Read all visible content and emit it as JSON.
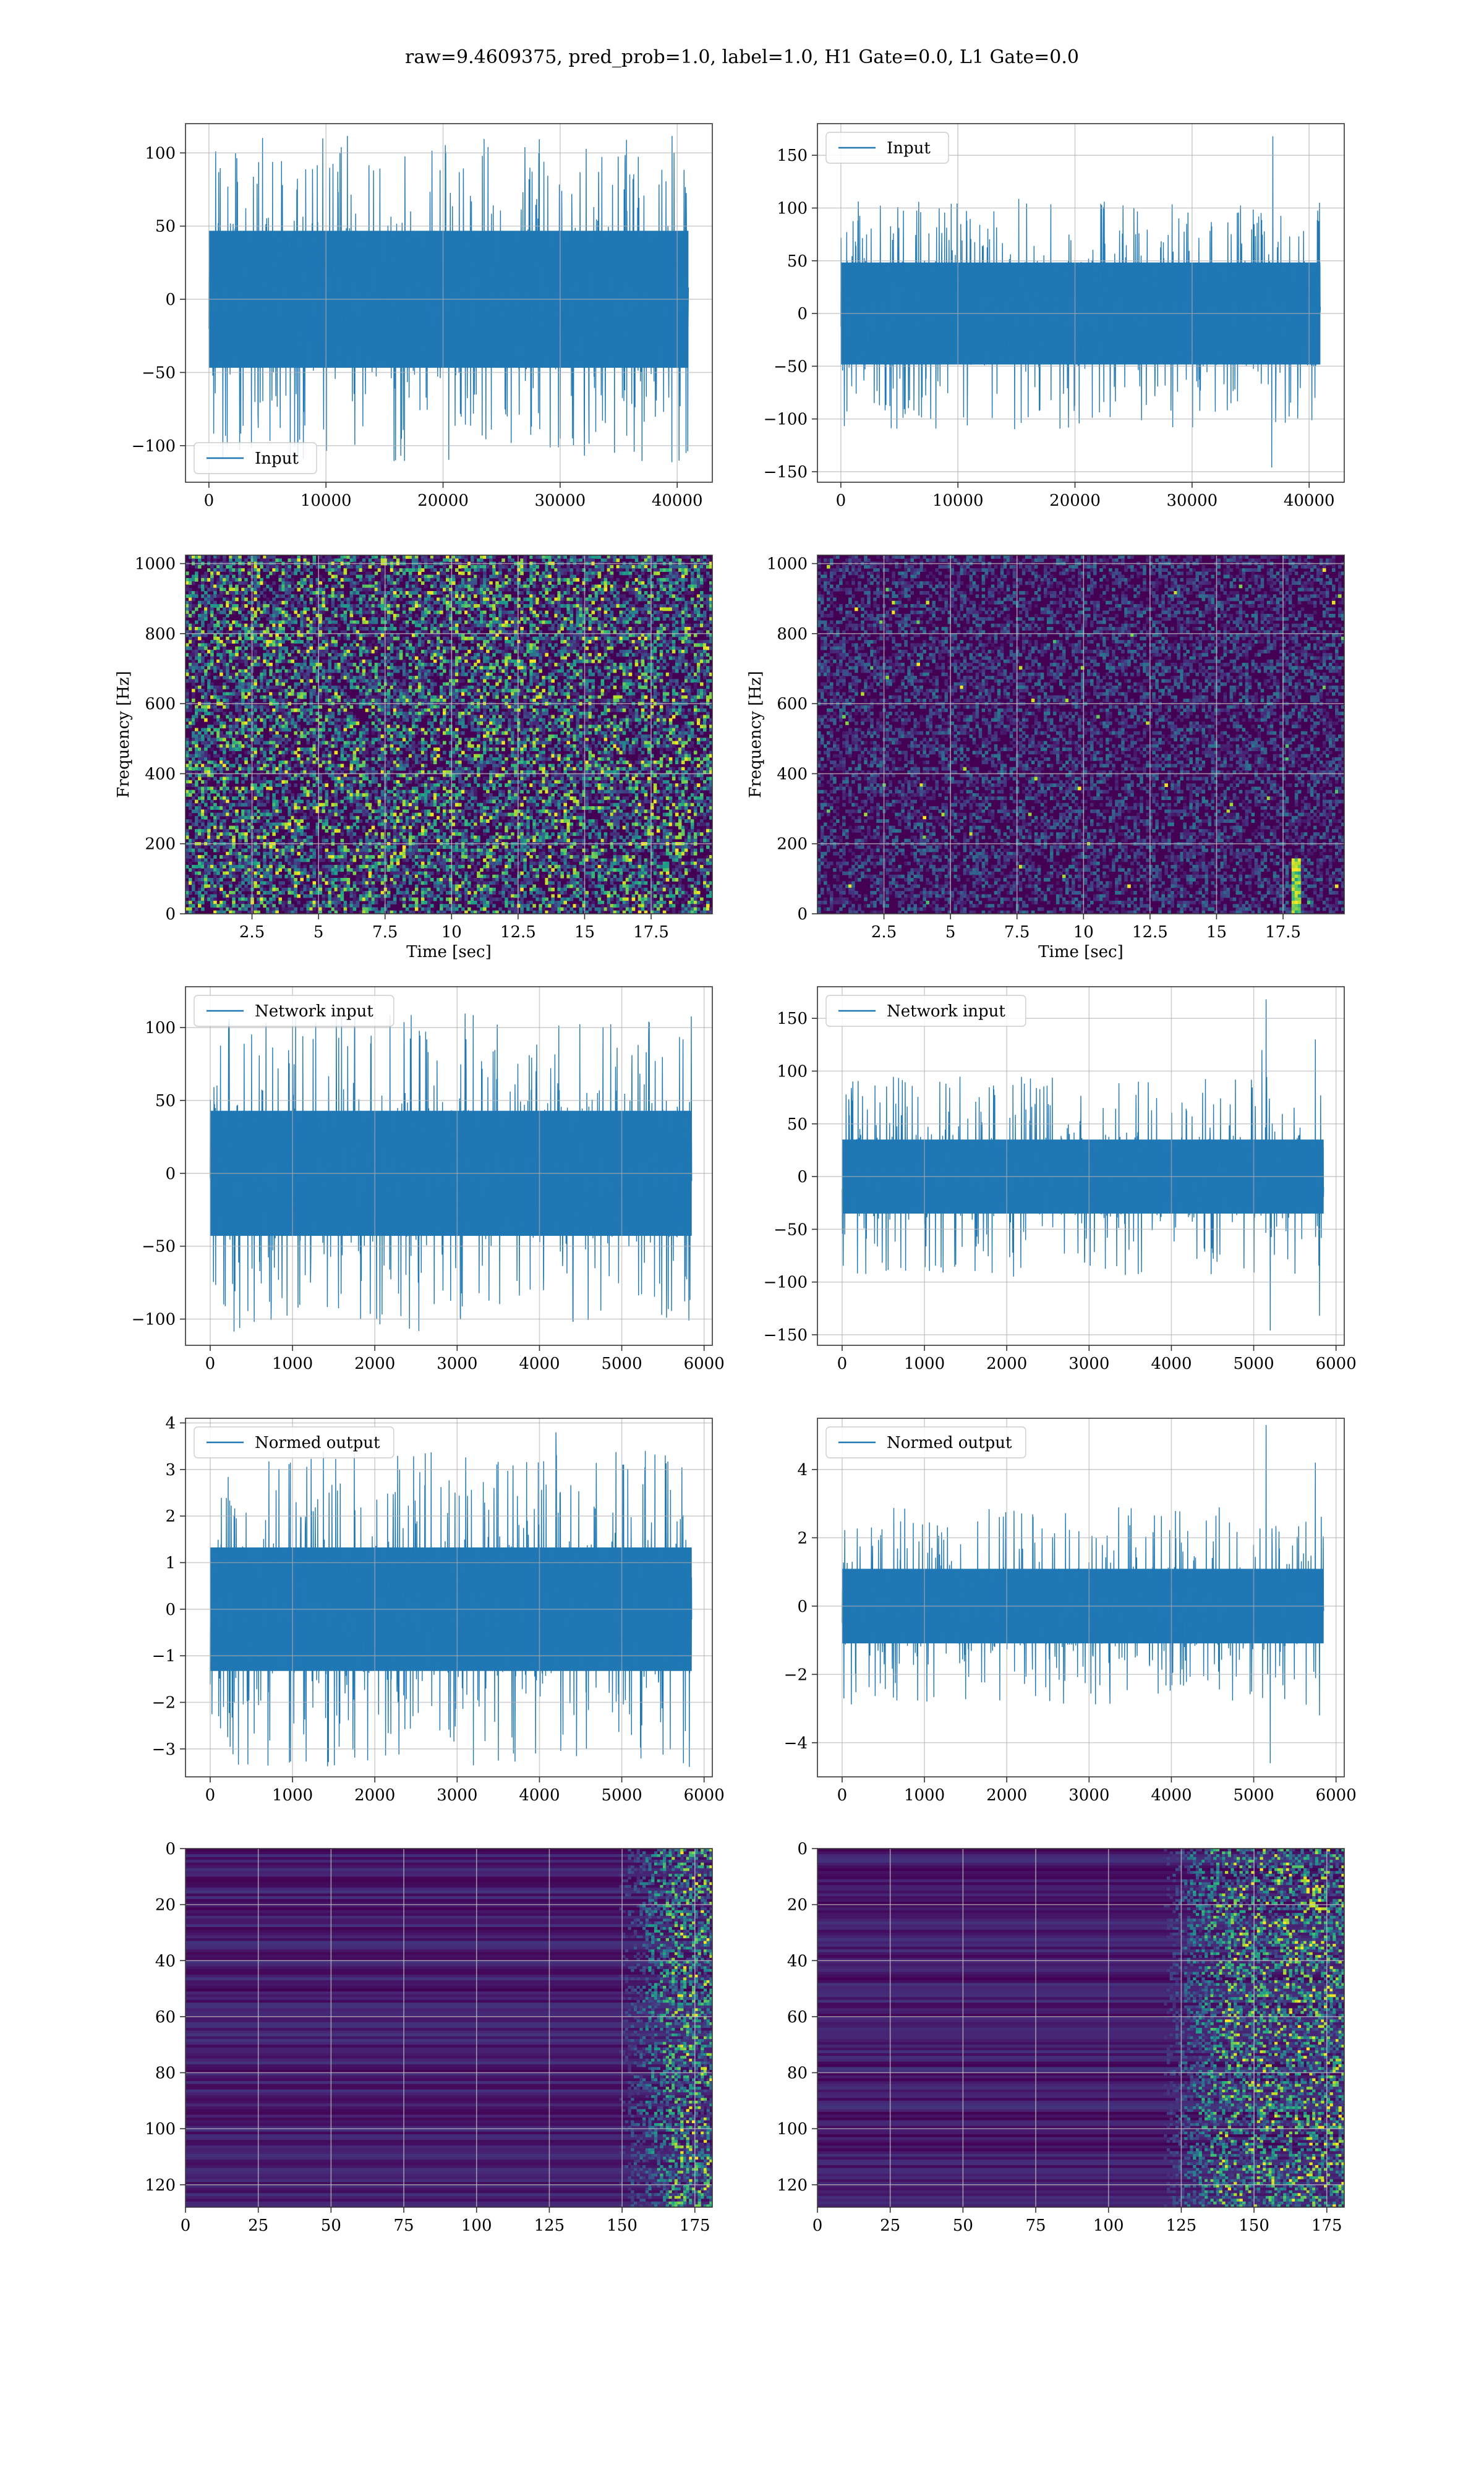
{
  "figure": {
    "title": "raw=9.4609375, pred_prob=1.0, label=1.0, H1 Gate=0.0, L1 Gate=0.0"
  },
  "colors": {
    "line": "#1f77b4",
    "grid": "#b0b0b0",
    "viridis_dark": "#440154",
    "viridis_mid": "#21918c",
    "viridis_bright": "#fde725"
  },
  "chart_data": [
    {
      "id": "h1-input",
      "type": "line",
      "row": 0,
      "col": 0,
      "legend": "Input",
      "legend_loc": "lower-left",
      "xlim": [
        -2000,
        43000
      ],
      "ylim": [
        -125,
        120
      ],
      "xticks": [
        0,
        10000,
        20000,
        30000,
        40000
      ],
      "yticks": [
        -100,
        -50,
        0,
        50,
        100
      ],
      "x_range": [
        0,
        40960
      ],
      "amp_core": 60,
      "amp_peak": 112,
      "seed": 11,
      "xlabel": "",
      "ylabel": ""
    },
    {
      "id": "l1-input",
      "type": "line",
      "row": 0,
      "col": 1,
      "legend": "Input",
      "legend_loc": "upper-left",
      "xlim": [
        -2000,
        43000
      ],
      "ylim": [
        -160,
        180
      ],
      "xticks": [
        0,
        10000,
        20000,
        30000,
        40000
      ],
      "yticks": [
        -150,
        -100,
        -50,
        0,
        50,
        100,
        150
      ],
      "x_range": [
        0,
        40960
      ],
      "amp_core": 62,
      "amp_peak": 110,
      "seed": 23,
      "spikes": [
        [
          36900,
          168
        ],
        [
          36800,
          -146
        ]
      ],
      "xlabel": "",
      "ylabel": ""
    },
    {
      "id": "h1-spectrogram",
      "type": "heatmap",
      "row": 1,
      "col": 0,
      "xlim": [
        0,
        19.8
      ],
      "ylim": [
        0,
        1024
      ],
      "xticks": [
        2.5,
        5.0,
        7.5,
        10.0,
        12.5,
        15.0,
        17.5
      ],
      "yticks": [
        0,
        200,
        400,
        600,
        800,
        1000
      ],
      "xlabel": "Time [sec]",
      "ylabel": "Frequency [Hz]",
      "intensity": 0.55,
      "seed": 37
    },
    {
      "id": "l1-spectrogram",
      "type": "heatmap",
      "row": 1,
      "col": 1,
      "xlim": [
        0,
        19.8
      ],
      "ylim": [
        0,
        1024
      ],
      "xticks": [
        2.5,
        5.0,
        7.5,
        10.0,
        12.5,
        15.0,
        17.5
      ],
      "yticks": [
        0,
        200,
        400,
        600,
        800,
        1000
      ],
      "xlabel": "Time [sec]",
      "ylabel": "Frequency [Hz]",
      "intensity": 0.22,
      "seed": 41,
      "hotspot": {
        "x": 18.0,
        "y_from": 0,
        "y_to": 160
      }
    },
    {
      "id": "h1-network-input",
      "type": "line",
      "row": 2,
      "col": 0,
      "legend": "Network input",
      "legend_loc": "upper-left",
      "xlim": [
        -300,
        6100
      ],
      "ylim": [
        -118,
        128
      ],
      "xticks": [
        0,
        1000,
        2000,
        3000,
        4000,
        5000,
        6000
      ],
      "yticks": [
        -100,
        -50,
        0,
        50,
        100
      ],
      "x_range": [
        0,
        5850
      ],
      "amp_core": 55,
      "amp_peak": 110,
      "seed": 53,
      "xlabel": "",
      "ylabel": ""
    },
    {
      "id": "l1-network-input",
      "type": "line",
      "row": 2,
      "col": 1,
      "legend": "Network input",
      "legend_loc": "upper-left",
      "xlim": [
        -300,
        6100
      ],
      "ylim": [
        -160,
        180
      ],
      "xticks": [
        0,
        1000,
        2000,
        3000,
        4000,
        5000,
        6000
      ],
      "yticks": [
        -150,
        -100,
        -50,
        0,
        50,
        100,
        150
      ],
      "x_range": [
        0,
        5850
      ],
      "amp_core": 45,
      "amp_peak": 95,
      "seed": 61,
      "spikes": [
        [
          5150,
          168
        ],
        [
          5200,
          -146
        ],
        [
          5100,
          120
        ],
        [
          5750,
          130
        ],
        [
          5800,
          -132
        ]
      ],
      "xlabel": "",
      "ylabel": ""
    },
    {
      "id": "h1-normed-output",
      "type": "line",
      "row": 3,
      "col": 0,
      "legend": "Normed output",
      "legend_loc": "upper-left",
      "xlim": [
        -300,
        6100
      ],
      "ylim": [
        -3.6,
        4.1
      ],
      "xticks": [
        0,
        1000,
        2000,
        3000,
        4000,
        5000,
        6000
      ],
      "yticks": [
        -3,
        -2,
        -1,
        0,
        1,
        2,
        3,
        4
      ],
      "x_range": [
        0,
        5850
      ],
      "amp_core": 1.7,
      "amp_peak": 3.4,
      "seed": 71,
      "spikes": [
        [
          4200,
          3.8
        ]
      ],
      "xlabel": "",
      "ylabel": ""
    },
    {
      "id": "l1-normed-output",
      "type": "line",
      "row": 3,
      "col": 1,
      "legend": "Normed output",
      "legend_loc": "upper-left",
      "xlim": [
        -300,
        6100
      ],
      "ylim": [
        -5.0,
        5.5
      ],
      "xticks": [
        0,
        1000,
        2000,
        3000,
        4000,
        5000,
        6000
      ],
      "yticks": [
        -4,
        -2,
        0,
        2,
        4
      ],
      "x_range": [
        0,
        5850
      ],
      "amp_core": 1.4,
      "amp_peak": 2.9,
      "seed": 83,
      "spikes": [
        [
          5150,
          5.3
        ],
        [
          5200,
          -4.6
        ],
        [
          5750,
          4.2
        ],
        [
          5800,
          -3.2
        ]
      ],
      "xlabel": "",
      "ylabel": ""
    },
    {
      "id": "h1-feature-map",
      "type": "heatmap",
      "row": 4,
      "col": 0,
      "xlim": [
        0,
        181
      ],
      "ylim": [
        128,
        0
      ],
      "xticks": [
        0,
        25,
        50,
        75,
        100,
        125,
        150,
        175
      ],
      "yticks": [
        0,
        20,
        40,
        60,
        80,
        100,
        120
      ],
      "xlabel": "",
      "ylabel": "",
      "rowbands": true,
      "active_from": 155,
      "seed": 97
    },
    {
      "id": "l1-feature-map",
      "type": "heatmap",
      "row": 4,
      "col": 1,
      "xlim": [
        0,
        181
      ],
      "ylim": [
        128,
        0
      ],
      "xticks": [
        0,
        25,
        50,
        75,
        100,
        125,
        150,
        175
      ],
      "yticks": [
        0,
        20,
        40,
        60,
        80,
        100,
        120
      ],
      "xlabel": "",
      "ylabel": "",
      "rowbands": true,
      "active_from": 125,
      "seed": 103
    }
  ]
}
